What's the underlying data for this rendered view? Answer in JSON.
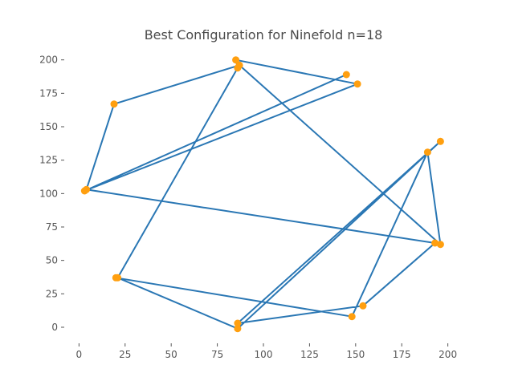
{
  "chart_data": {
    "type": "line",
    "title": "Best Configuration for Ninefold n=18",
    "xlabel": "",
    "ylabel": "",
    "xlim": [
      -8,
      208
    ],
    "ylim": [
      -12,
      210
    ],
    "xticks": [
      0,
      25,
      50,
      75,
      100,
      125,
      150,
      175,
      200
    ],
    "yticks": [
      0,
      25,
      50,
      75,
      100,
      125,
      150,
      175,
      200
    ],
    "grid": false,
    "legend": "none",
    "series": [
      {
        "line_color": "#2a77b4",
        "marker_color": "#ff9f0f",
        "x": [
          145,
          3,
          151,
          85,
          86,
          21,
          86,
          196,
          86,
          154,
          193,
          4,
          19,
          87,
          196,
          189,
          148,
          20
        ],
        "y": [
          189,
          102,
          182,
          200,
          194,
          37,
          -1,
          139,
          3,
          16,
          63,
          103,
          167,
          196,
          62,
          131,
          8,
          37
        ]
      }
    ]
  }
}
